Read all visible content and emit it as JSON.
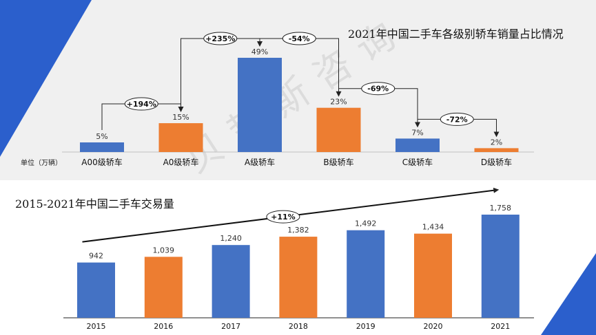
{
  "watermark": "贝哲斯咨询",
  "colors": {
    "blue": "#4472c4",
    "orange": "#ed7d31",
    "accent_blue": "#2b5fcc",
    "axis": "#222222"
  },
  "chart_data": [
    {
      "type": "bar",
      "title": "2021年中国二手车各级别轿车销量占比情况",
      "unit_label": "单位（万辆）",
      "categories": [
        "A00级轿车",
        "A0级轿车",
        "A级轿车",
        "B级轿车",
        "C级轿车",
        "D级轿车"
      ],
      "values": [
        5,
        15,
        49,
        23,
        7,
        2
      ],
      "value_suffix": "%",
      "bar_colors": [
        "#4472c4",
        "#ed7d31",
        "#4472c4",
        "#ed7d31",
        "#4472c4",
        "#ed7d31"
      ],
      "changes": [
        {
          "from": 0,
          "to": 1,
          "label": "+194%"
        },
        {
          "from": 1,
          "to": 2,
          "label": "+235%"
        },
        {
          "from": 2,
          "to": 3,
          "label": "-54%"
        },
        {
          "from": 3,
          "to": 4,
          "label": "-69%"
        },
        {
          "from": 4,
          "to": 5,
          "label": "-72%"
        }
      ],
      "ylim": [
        0,
        49
      ],
      "grid": false,
      "legend": "none"
    },
    {
      "type": "bar",
      "title": "2015-2021年中国二手车交易量",
      "categories": [
        "2015",
        "2016",
        "2017",
        "2018",
        "2019",
        "2020",
        "2021"
      ],
      "values": [
        942,
        1039,
        1240,
        1382,
        1492,
        1434,
        1758
      ],
      "value_labels": [
        "942",
        "1,039",
        "1,240",
        "1,382",
        "1,492",
        "1,434",
        "1,758"
      ],
      "bar_colors": [
        "#4472c4",
        "#ed7d31",
        "#4472c4",
        "#ed7d31",
        "#4472c4",
        "#ed7d31",
        "#4472c4"
      ],
      "trend_label": "+11%",
      "ylim": [
        0,
        1758
      ],
      "grid": false,
      "legend": "none"
    }
  ]
}
